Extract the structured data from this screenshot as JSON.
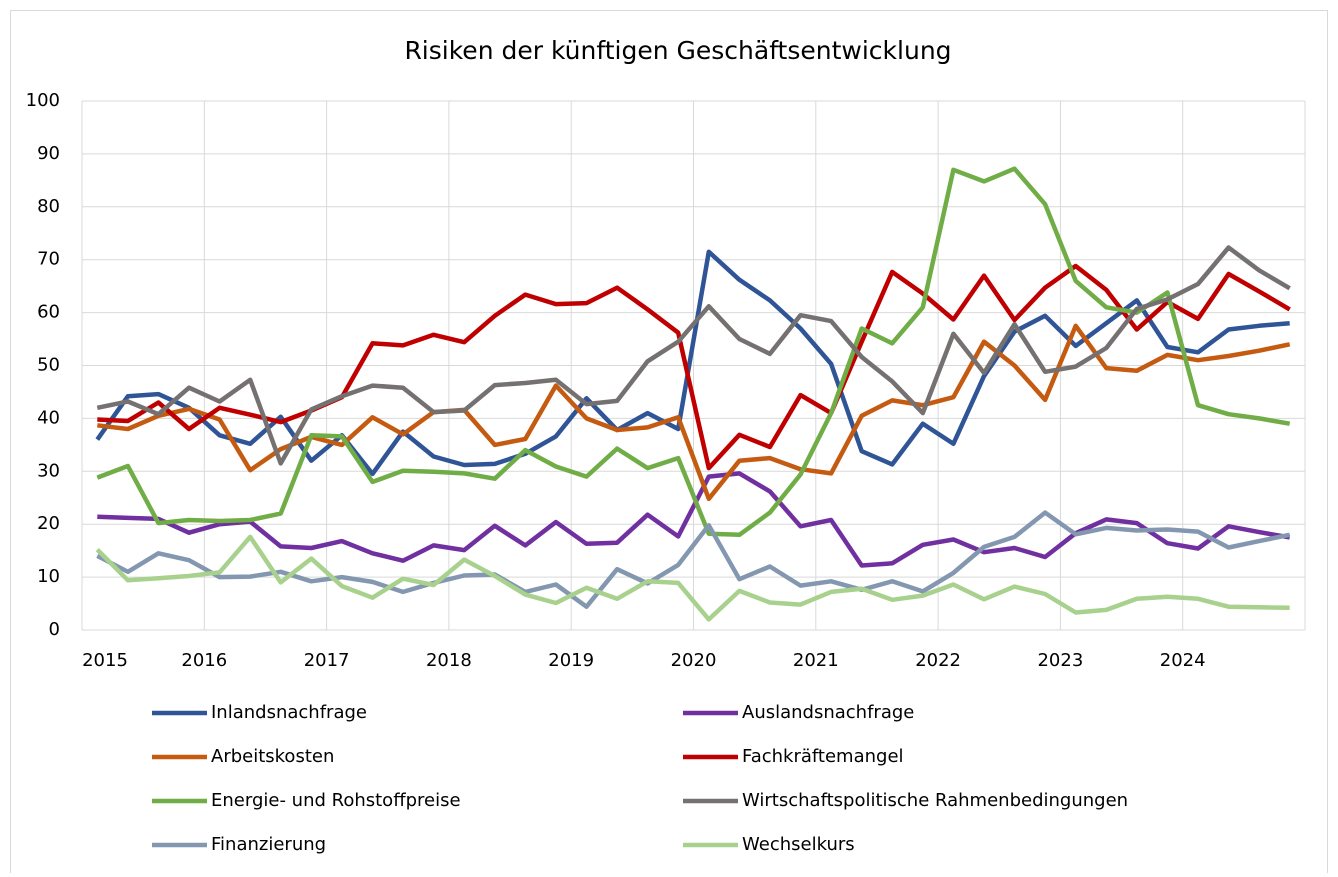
{
  "chart_data": {
    "type": "line",
    "title": "Risiken der künftigen Geschäftsentwicklung",
    "x": [
      2015.125,
      2015.375,
      2015.625,
      2015.875,
      2016.125,
      2016.375,
      2016.625,
      2016.875,
      2017.125,
      2017.375,
      2017.625,
      2017.875,
      2018.125,
      2018.375,
      2018.625,
      2018.875,
      2019.125,
      2019.375,
      2019.625,
      2019.875,
      2020.125,
      2020.375,
      2020.625,
      2020.875,
      2021.125,
      2021.375,
      2021.625,
      2021.875,
      2022.125,
      2022.375,
      2022.625,
      2022.875,
      2023.125,
      2023.375,
      2023.625,
      2023.875,
      2024.125,
      2024.375,
      2024.625,
      2024.875
    ],
    "xlim": [
      2015,
      2025
    ],
    "xticks": [
      2015,
      2016,
      2017,
      2018,
      2019,
      2020,
      2021,
      2022,
      2023,
      2024
    ],
    "ylim": [
      0,
      100
    ],
    "yticks": [
      0,
      10,
      20,
      30,
      40,
      50,
      60,
      70,
      80,
      90,
      100
    ],
    "grid": true,
    "series": [
      {
        "name": "Inlandsnachfrage",
        "color": "#2f5597",
        "values": [
          36,
          44.2,
          44.6,
          42,
          36.8,
          35.2,
          40.3,
          32,
          36.8,
          29.5,
          37.5,
          32.8,
          31.2,
          31.4,
          33.3,
          36.6,
          43.8,
          37.8,
          41,
          38,
          71.5,
          66.2,
          62.3,
          57,
          50.3,
          33.8,
          31.3,
          39,
          35.2,
          48,
          56.4,
          59.4,
          53.7,
          58,
          62.3,
          53.5,
          52.5,
          56.8,
          57.5,
          58
        ]
      },
      {
        "name": "Auslandsnachfrage",
        "color": "#7030a0",
        "values": [
          21.4,
          21.2,
          21,
          18.4,
          20,
          20.5,
          15.8,
          15.5,
          16.8,
          14.5,
          13.1,
          16,
          15.1,
          19.7,
          16,
          20.4,
          16.3,
          16.5,
          21.8,
          17.7,
          29,
          29.6,
          26.2,
          19.6,
          20.8,
          12.2,
          12.6,
          16.1,
          17.1,
          14.7,
          15.5,
          13.8,
          18.3,
          20.9,
          20.2,
          16.4,
          15.4,
          19.6,
          18.5,
          17.5
        ]
      },
      {
        "name": "Arbeitskosten",
        "color": "#c55a11",
        "values": [
          38.7,
          38,
          40.5,
          41.8,
          39.8,
          30.2,
          34.2,
          36.5,
          35,
          40.2,
          37,
          41.2,
          41.6,
          35,
          36.1,
          46.2,
          40,
          37.8,
          38.3,
          40.2,
          24.8,
          32,
          32.5,
          30.4,
          29.6,
          40.5,
          43.4,
          42.5,
          44,
          54.5,
          50,
          43.5,
          57.5,
          49.5,
          49,
          52,
          51,
          51.8,
          52.8,
          54
        ]
      },
      {
        "name": "Fachkräftemangel",
        "color": "#c00000",
        "values": [
          39.8,
          39.5,
          43,
          38,
          42,
          40.7,
          39.3,
          41.5,
          44,
          54.2,
          53.8,
          55.8,
          54.4,
          59.4,
          63.4,
          61.6,
          61.8,
          64.7,
          60.6,
          56.2,
          30.6,
          36.9,
          34.6,
          44.4,
          41,
          54.5,
          67.7,
          63.6,
          58.7,
          67,
          58.6,
          64.7,
          68.8,
          64.3,
          56.8,
          62,
          58.8,
          67.3,
          64,
          60.6
        ]
      },
      {
        "name": "Energie- und Rohstoffpreise",
        "color": "#70ad47",
        "values": [
          28.8,
          31,
          20.2,
          20.8,
          20.6,
          20.8,
          22,
          36.8,
          36.6,
          28,
          30.1,
          29.9,
          29.6,
          28.6,
          34,
          30.9,
          29,
          34.3,
          30.6,
          32.5,
          18.2,
          18,
          22.2,
          29.4,
          41,
          57,
          54.2,
          61,
          87,
          84.8,
          87.2,
          80.5,
          66,
          61,
          60,
          63.8,
          42.5,
          40.8,
          40,
          39
        ]
      },
      {
        "name": "Wirtschaftspolitische Rahmenbedingungen",
        "color": "#767171",
        "values": [
          42,
          43.2,
          40.8,
          45.8,
          43.2,
          47.3,
          31.5,
          41.7,
          44.2,
          46.2,
          45.8,
          41.2,
          41.5,
          46.3,
          46.7,
          47.3,
          42.7,
          43.3,
          50.8,
          54.5,
          61.2,
          55,
          52.2,
          59.5,
          58.4,
          51.6,
          47,
          41,
          56,
          48.6,
          57.8,
          48.8,
          49.8,
          53.3,
          60.7,
          62.5,
          65.4,
          72.3,
          68,
          64.6
        ]
      },
      {
        "name": "Finanzierung",
        "color": "#8497b0",
        "values": [
          14,
          11,
          14.5,
          13.2,
          10,
          10.1,
          11,
          9.2,
          10,
          9.1,
          7.2,
          8.9,
          10.3,
          10.5,
          7.2,
          8.6,
          4.4,
          11.5,
          8.8,
          12.3,
          19.8,
          9.6,
          12,
          8.4,
          9.2,
          7.6,
          9.2,
          7.3,
          10.8,
          15.7,
          17.6,
          22.2,
          18.1,
          19.3,
          18.8,
          19,
          18.6,
          15.6,
          16.8,
          18
        ]
      },
      {
        "name": "Wechselkurs",
        "color": "#a9d18e",
        "values": [
          15.2,
          9.4,
          9.8,
          10.2,
          10.9,
          17.6,
          9,
          13.5,
          8.3,
          6.1,
          9.7,
          8.5,
          13.3,
          10.2,
          6.7,
          5.1,
          8,
          5.9,
          9.2,
          8.9,
          2,
          7.4,
          5.2,
          4.8,
          7.2,
          7.8,
          5.7,
          6.5,
          8.6,
          5.8,
          8.2,
          6.8,
          3.3,
          3.8,
          5.9,
          6.3,
          5.9,
          4.4,
          4.3,
          4.2
        ]
      }
    ]
  }
}
